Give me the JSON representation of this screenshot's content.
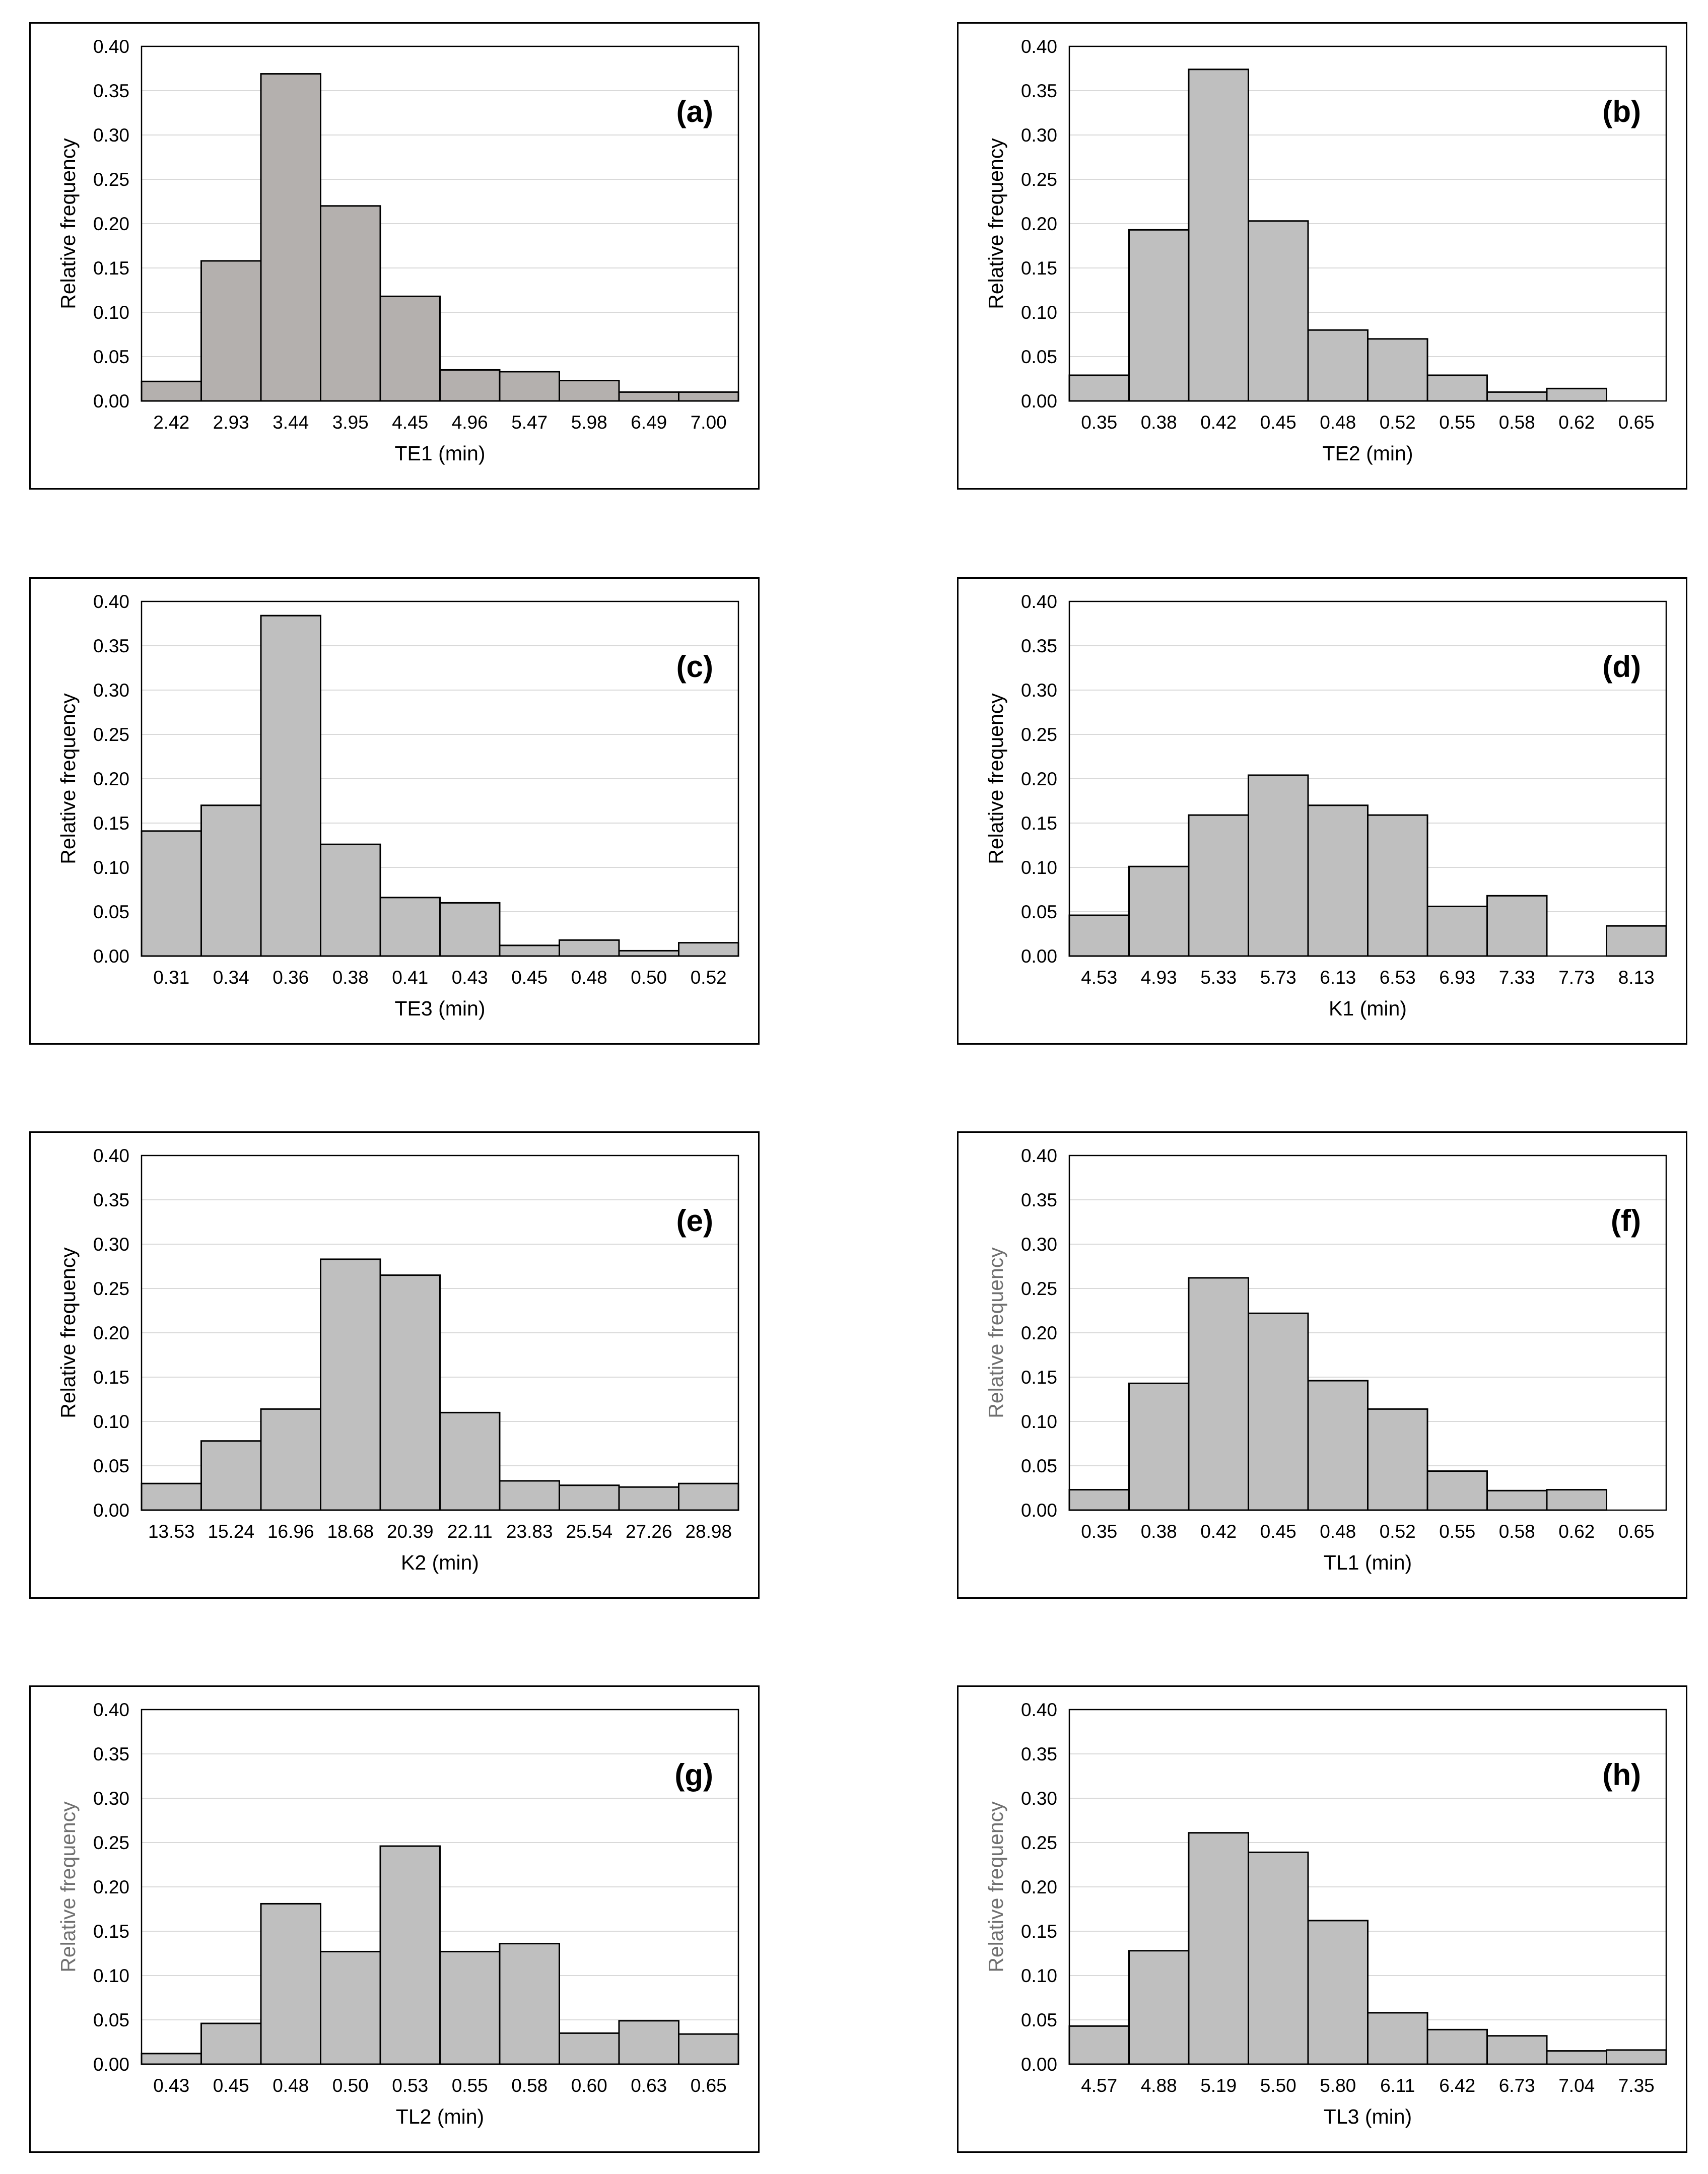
{
  "chart_data": [
    {
      "type": "bar",
      "panel": "(a)",
      "bar_color": "#b4b0ae",
      "xlabel": "TE1 (min)",
      "ylabel": "Relative frequency",
      "ylim": [
        0,
        0.4
      ],
      "yticks": [
        "0.00",
        "0.05",
        "0.10",
        "0.15",
        "0.20",
        "0.25",
        "0.30",
        "0.35",
        "0.40"
      ],
      "categories": [
        "2.42",
        "2.93",
        "3.44",
        "3.95",
        "4.45",
        "4.96",
        "5.47",
        "5.98",
        "6.49",
        "7.00"
      ],
      "values": [
        0.022,
        0.158,
        0.369,
        0.22,
        0.118,
        0.035,
        0.033,
        0.023,
        0.01,
        0.01
      ]
    },
    {
      "type": "bar",
      "panel": "(b)",
      "bar_color": "#bfbfbf",
      "xlabel": "TE2 (min)",
      "ylabel": "Relative frequency",
      "ylim": [
        0,
        0.4
      ],
      "yticks": [
        "0.00",
        "0.05",
        "0.10",
        "0.15",
        "0.20",
        "0.25",
        "0.30",
        "0.35",
        "0.40"
      ],
      "categories": [
        "0.35",
        "0.38",
        "0.42",
        "0.45",
        "0.48",
        "0.52",
        "0.55",
        "0.58",
        "0.62",
        "0.65"
      ],
      "values": [
        0.029,
        0.193,
        0.374,
        0.203,
        0.08,
        0.07,
        0.029,
        0.01,
        0.014,
        0.0
      ]
    },
    {
      "type": "bar",
      "panel": "(c)",
      "bar_color": "#bfbfbf",
      "xlabel": "TE3 (min)",
      "ylabel": "Relative frequency",
      "ylim": [
        0,
        0.4
      ],
      "yticks": [
        "0.00",
        "0.05",
        "0.10",
        "0.15",
        "0.20",
        "0.25",
        "0.30",
        "0.35",
        "0.40"
      ],
      "categories": [
        "0.31",
        "0.34",
        "0.36",
        "0.38",
        "0.41",
        "0.43",
        "0.45",
        "0.48",
        "0.50",
        "0.52"
      ],
      "values": [
        0.141,
        0.17,
        0.384,
        0.126,
        0.066,
        0.06,
        0.012,
        0.018,
        0.006,
        0.015
      ]
    },
    {
      "type": "bar",
      "panel": "(d)",
      "bar_color": "#bfbfbf",
      "xlabel": "K1 (min)",
      "ylabel": "Relative frequency",
      "ylim": [
        0,
        0.4
      ],
      "yticks": [
        "0.00",
        "0.05",
        "0.10",
        "0.15",
        "0.20",
        "0.25",
        "0.30",
        "0.35",
        "0.40"
      ],
      "categories": [
        "4.53",
        "4.93",
        "5.33",
        "5.73",
        "6.13",
        "6.53",
        "6.93",
        "7.33",
        "7.73",
        "8.13"
      ],
      "values": [
        0.046,
        0.101,
        0.159,
        0.204,
        0.17,
        0.159,
        0.056,
        0.068,
        0.0,
        0.034
      ]
    },
    {
      "type": "bar",
      "panel": "(e)",
      "bar_color": "#bfbfbf",
      "xlabel": "K2 (min)",
      "ylabel": "Relative frequency",
      "ylim": [
        0,
        0.4
      ],
      "yticks": [
        "0.00",
        "0.05",
        "0.10",
        "0.15",
        "0.20",
        "0.25",
        "0.30",
        "0.35",
        "0.40"
      ],
      "categories": [
        "13.53",
        "15.24",
        "16.96",
        "18.68",
        "20.39",
        "22.11",
        "23.83",
        "25.54",
        "27.26",
        "28.98"
      ],
      "values": [
        0.03,
        0.078,
        0.114,
        0.283,
        0.265,
        0.11,
        0.033,
        0.028,
        0.026,
        0.03
      ]
    },
    {
      "type": "bar",
      "panel": "(f)",
      "bar_color": "#bfbfbf",
      "xlabel": "TL1 (min)",
      "ylabel": "Relative frequency",
      "ylabel_color": "#707070",
      "ylim": [
        0,
        0.4
      ],
      "yticks": [
        "0.00",
        "0.05",
        "0.10",
        "0.15",
        "0.20",
        "0.25",
        "0.30",
        "0.35",
        "0.40"
      ],
      "categories": [
        "0.35",
        "0.38",
        "0.42",
        "0.45",
        "0.48",
        "0.52",
        "0.55",
        "0.58",
        "0.62",
        "0.65"
      ],
      "values": [
        0.023,
        0.143,
        0.262,
        0.222,
        0.146,
        0.114,
        0.044,
        0.022,
        0.023,
        0.0
      ]
    },
    {
      "type": "bar",
      "panel": "(g)",
      "bar_color": "#bfbfbf",
      "xlabel": "TL2 (min)",
      "ylabel": "Relative frequency",
      "ylabel_color": "#707070",
      "ylim": [
        0,
        0.4
      ],
      "yticks": [
        "0.00",
        "0.05",
        "0.10",
        "0.15",
        "0.20",
        "0.25",
        "0.30",
        "0.35",
        "0.40"
      ],
      "categories": [
        "0.43",
        "0.45",
        "0.48",
        "0.50",
        "0.53",
        "0.55",
        "0.58",
        "0.60",
        "0.63",
        "0.65"
      ],
      "values": [
        0.012,
        0.046,
        0.181,
        0.127,
        0.246,
        0.127,
        0.136,
        0.035,
        0.049,
        0.034
      ]
    },
    {
      "type": "bar",
      "panel": "(h)",
      "bar_color": "#bfbfbf",
      "xlabel": "TL3 (min)",
      "ylabel": "Relative frequency",
      "ylabel_color": "#707070",
      "ylim": [
        0,
        0.4
      ],
      "yticks": [
        "0.00",
        "0.05",
        "0.10",
        "0.15",
        "0.20",
        "0.25",
        "0.30",
        "0.35",
        "0.40"
      ],
      "categories": [
        "4.57",
        "4.88",
        "5.19",
        "5.50",
        "5.80",
        "6.11",
        "6.42",
        "6.73",
        "7.04",
        "7.35"
      ],
      "values": [
        0.043,
        0.128,
        0.261,
        0.239,
        0.162,
        0.058,
        0.039,
        0.032,
        0.015,
        0.016
      ]
    }
  ]
}
